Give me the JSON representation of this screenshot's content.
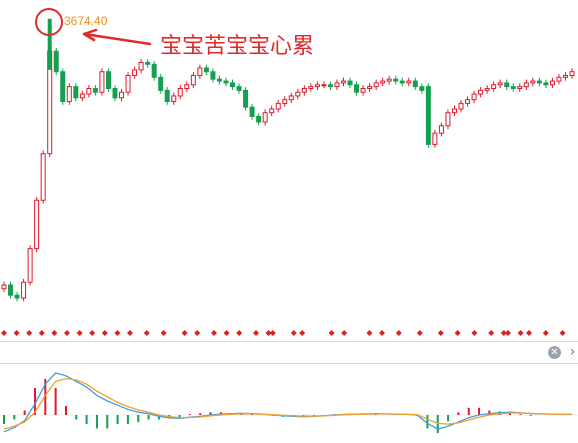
{
  "annotation": {
    "text": "宝宝苦宝宝心累",
    "color": "#e02a2a"
  },
  "colors": {
    "up": "#e0182a",
    "down": "#14a050",
    "dif": "#3f9fdc",
    "dea": "#f0a030",
    "signal": "#e02020",
    "grid": "#d8d8d8",
    "price_label": "#f08c1a"
  },
  "controls": {
    "close_icon": "close-icon",
    "next_icon": "chevron-right-icon",
    "close_glyph": "✕",
    "next_glyph": "›"
  },
  "chart_data": [
    {
      "type": "candlestick",
      "title": "",
      "high_label": "3674.40",
      "high_value": 3674.4,
      "close": [
        2245,
        2190,
        2175,
        2260,
        2440,
        2700,
        2950,
        3500,
        3390,
        3230,
        3310,
        3250,
        3270,
        3300,
        3280,
        3390,
        3300,
        3250,
        3280,
        3370,
        3400,
        3440,
        3430,
        3360,
        3290,
        3230,
        3260,
        3300,
        3320,
        3370,
        3410,
        3390,
        3350,
        3340,
        3330,
        3310,
        3290,
        3200,
        3150,
        3120,
        3170,
        3190,
        3220,
        3240,
        3260,
        3280,
        3300,
        3310,
        3320,
        3320,
        3310,
        3330,
        3340,
        3320,
        3280,
        3300,
        3310,
        3330,
        3340,
        3350,
        3340,
        3330,
        3340,
        3310,
        3290,
        3000,
        3060,
        3100,
        3170,
        3190,
        3220,
        3240,
        3270,
        3290,
        3300,
        3320,
        3330,
        3310,
        3300,
        3310,
        3330,
        3340,
        3330,
        3320,
        3340,
        3360,
        3370,
        3390
      ],
      "signals": [
        0,
        3,
        6,
        9,
        12,
        15,
        18,
        21,
        24,
        27,
        30,
        34,
        38,
        43,
        46,
        50,
        53,
        56,
        60,
        63,
        64,
        69,
        71,
        78,
        81,
        87,
        90,
        94,
        99,
        104,
        108,
        112,
        116,
        119,
        120,
        123,
        125,
        129,
        133
      ]
    },
    {
      "type": "macd",
      "dif": [
        -60,
        -45,
        -20,
        40,
        110,
        150,
        140,
        120,
        100,
        70,
        50,
        35,
        20,
        10,
        5,
        -5,
        -10,
        -12,
        -8,
        -5,
        0,
        3,
        5,
        6,
        5,
        3,
        0,
        -3,
        -5,
        -6,
        -5,
        -3,
        0,
        2,
        3,
        4,
        5,
        4,
        3,
        2,
        0,
        -30,
        -50,
        -40,
        -25,
        -10,
        0,
        5,
        8,
        10,
        8,
        5,
        4,
        3,
        2,
        3
      ],
      "dea": [
        -50,
        -40,
        -25,
        10,
        70,
        120,
        130,
        125,
        110,
        85,
        65,
        45,
        30,
        18,
        10,
        0,
        -6,
        -9,
        -9,
        -7,
        -3,
        0,
        3,
        4,
        4,
        3,
        1,
        -1,
        -3,
        -4,
        -4,
        -3,
        -1,
        1,
        2,
        3,
        4,
        4,
        3,
        2,
        1,
        -15,
        -30,
        -33,
        -28,
        -18,
        -8,
        0,
        4,
        7,
        7,
        6,
        4,
        3,
        2,
        3
      ],
      "hist": [
        -10,
        -5,
        5,
        30,
        40,
        30,
        10,
        -5,
        -10,
        -15,
        -15,
        -10,
        -10,
        -8,
        -5,
        -5,
        -4,
        -3,
        1,
        2,
        3,
        3,
        2,
        2,
        1,
        0,
        -1,
        -2,
        -2,
        -2,
        -1,
        0,
        1,
        1,
        1,
        1,
        1,
        0,
        0,
        0,
        -1,
        -15,
        -20,
        -7,
        3,
        8,
        8,
        5,
        4,
        3,
        1,
        -1,
        0,
        0,
        0,
        0
      ]
    }
  ]
}
